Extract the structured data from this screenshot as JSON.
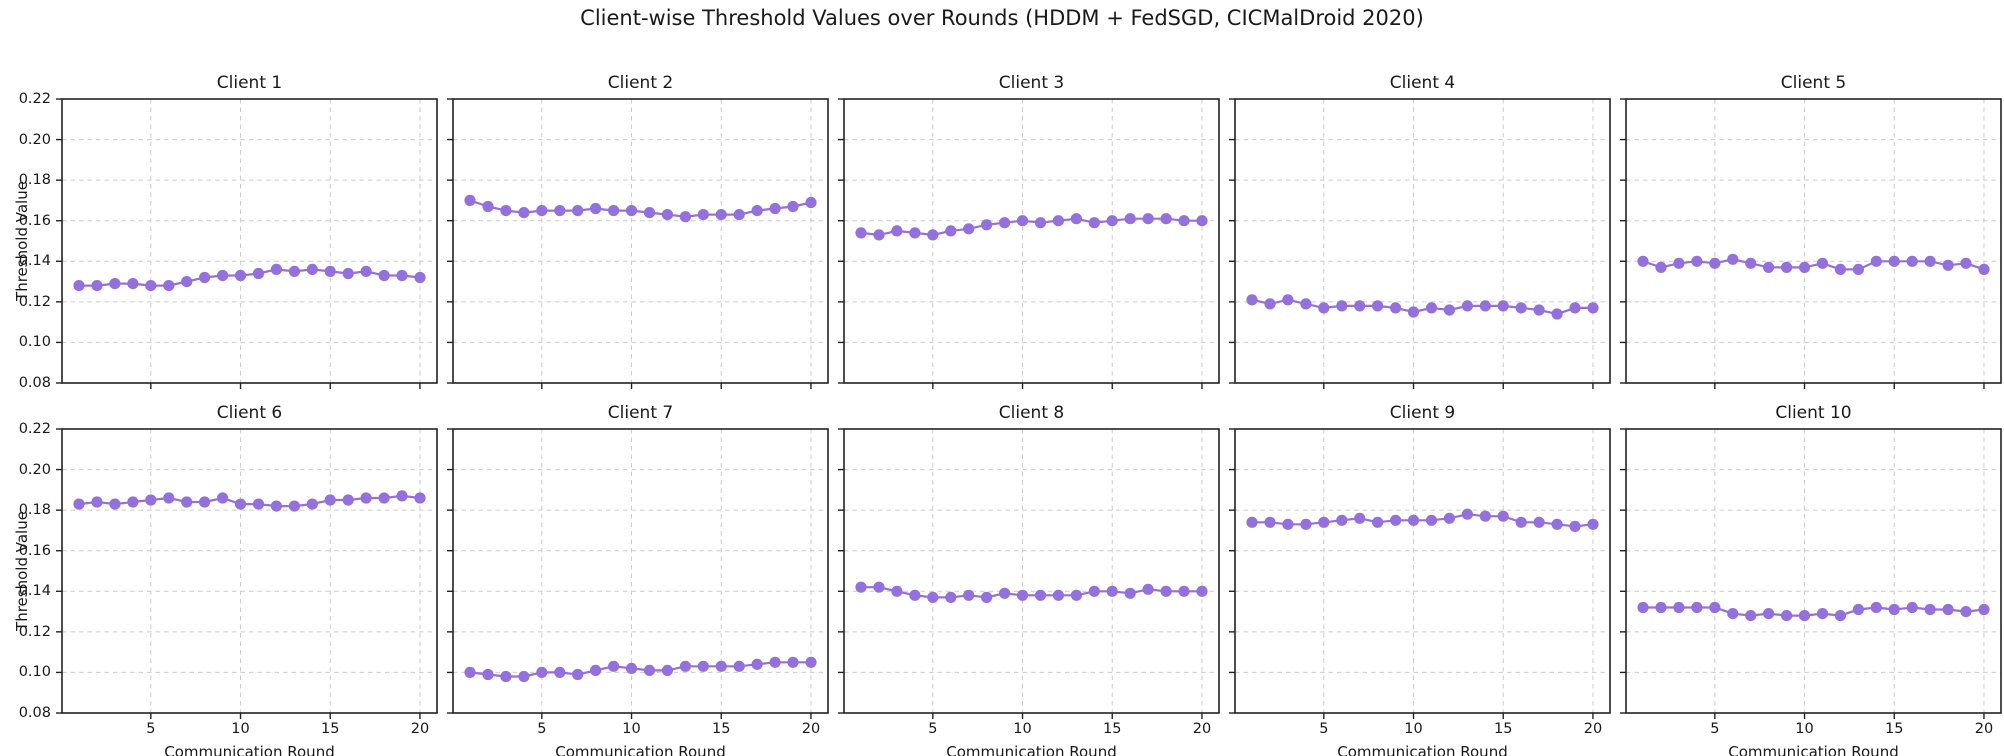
{
  "chart_data": {
    "type": "line",
    "suptitle": "Client-wise Threshold Values over Rounds (HDDM + FedSGD, CICMalDroid 2020)",
    "xlabel": "Communication Round",
    "ylabel": "Threshold Value",
    "x": [
      1,
      2,
      3,
      4,
      5,
      6,
      7,
      8,
      9,
      10,
      11,
      12,
      13,
      14,
      15,
      16,
      17,
      18,
      19,
      20
    ],
    "xticks": [
      5,
      10,
      15,
      20
    ],
    "yticks": [
      0.08,
      0.1,
      0.12,
      0.14,
      0.16,
      0.18,
      0.2,
      0.22
    ],
    "xlim": [
      0.05,
      20.95
    ],
    "ylim": [
      0.08,
      0.22
    ],
    "grid": true,
    "grid_style": "dashed",
    "legend": "none",
    "line_color": "#9370db",
    "grid_color": "#cccccc",
    "axis_color": "#222222",
    "text_color": "#1a1a1a",
    "subplots": [
      {
        "title": "Client 1",
        "values": [
          0.128,
          0.128,
          0.129,
          0.129,
          0.128,
          0.128,
          0.13,
          0.132,
          0.133,
          0.133,
          0.134,
          0.136,
          0.135,
          0.136,
          0.135,
          0.134,
          0.135,
          0.133,
          0.133,
          0.132
        ]
      },
      {
        "title": "Client 2",
        "values": [
          0.17,
          0.167,
          0.165,
          0.164,
          0.165,
          0.165,
          0.165,
          0.166,
          0.165,
          0.165,
          0.164,
          0.163,
          0.162,
          0.163,
          0.163,
          0.163,
          0.165,
          0.166,
          0.167,
          0.169
        ]
      },
      {
        "title": "Client 3",
        "values": [
          0.154,
          0.153,
          0.155,
          0.154,
          0.153,
          0.155,
          0.156,
          0.158,
          0.159,
          0.16,
          0.159,
          0.16,
          0.161,
          0.159,
          0.16,
          0.161,
          0.161,
          0.161,
          0.16,
          0.16
        ]
      },
      {
        "title": "Client 4",
        "values": [
          0.121,
          0.119,
          0.121,
          0.119,
          0.117,
          0.118,
          0.118,
          0.118,
          0.117,
          0.115,
          0.117,
          0.116,
          0.118,
          0.118,
          0.118,
          0.117,
          0.116,
          0.114,
          0.117,
          0.117
        ]
      },
      {
        "title": "Client 5",
        "values": [
          0.14,
          0.137,
          0.139,
          0.14,
          0.139,
          0.141,
          0.139,
          0.137,
          0.137,
          0.137,
          0.139,
          0.136,
          0.136,
          0.14,
          0.14,
          0.14,
          0.14,
          0.138,
          0.139,
          0.136
        ]
      },
      {
        "title": "Client 6",
        "values": [
          0.183,
          0.184,
          0.183,
          0.184,
          0.185,
          0.186,
          0.184,
          0.184,
          0.186,
          0.183,
          0.183,
          0.182,
          0.182,
          0.183,
          0.185,
          0.185,
          0.186,
          0.186,
          0.187,
          0.186
        ]
      },
      {
        "title": "Client 7",
        "values": [
          0.1,
          0.099,
          0.098,
          0.098,
          0.1,
          0.1,
          0.099,
          0.101,
          0.103,
          0.102,
          0.101,
          0.101,
          0.103,
          0.103,
          0.103,
          0.103,
          0.104,
          0.105,
          0.105,
          0.105
        ]
      },
      {
        "title": "Client 8",
        "values": [
          0.142,
          0.142,
          0.14,
          0.138,
          0.137,
          0.137,
          0.138,
          0.137,
          0.139,
          0.138,
          0.138,
          0.138,
          0.138,
          0.14,
          0.14,
          0.139,
          0.141,
          0.14,
          0.14,
          0.14
        ]
      },
      {
        "title": "Client 9",
        "values": [
          0.174,
          0.174,
          0.173,
          0.173,
          0.174,
          0.175,
          0.176,
          0.174,
          0.175,
          0.175,
          0.175,
          0.176,
          0.178,
          0.177,
          0.177,
          0.174,
          0.174,
          0.173,
          0.172,
          0.173
        ]
      },
      {
        "title": "Client 10",
        "values": [
          0.132,
          0.132,
          0.132,
          0.132,
          0.132,
          0.129,
          0.128,
          0.129,
          0.128,
          0.128,
          0.129,
          0.128,
          0.131,
          0.132,
          0.131,
          0.132,
          0.131,
          0.131,
          0.13,
          0.131
        ]
      }
    ]
  }
}
